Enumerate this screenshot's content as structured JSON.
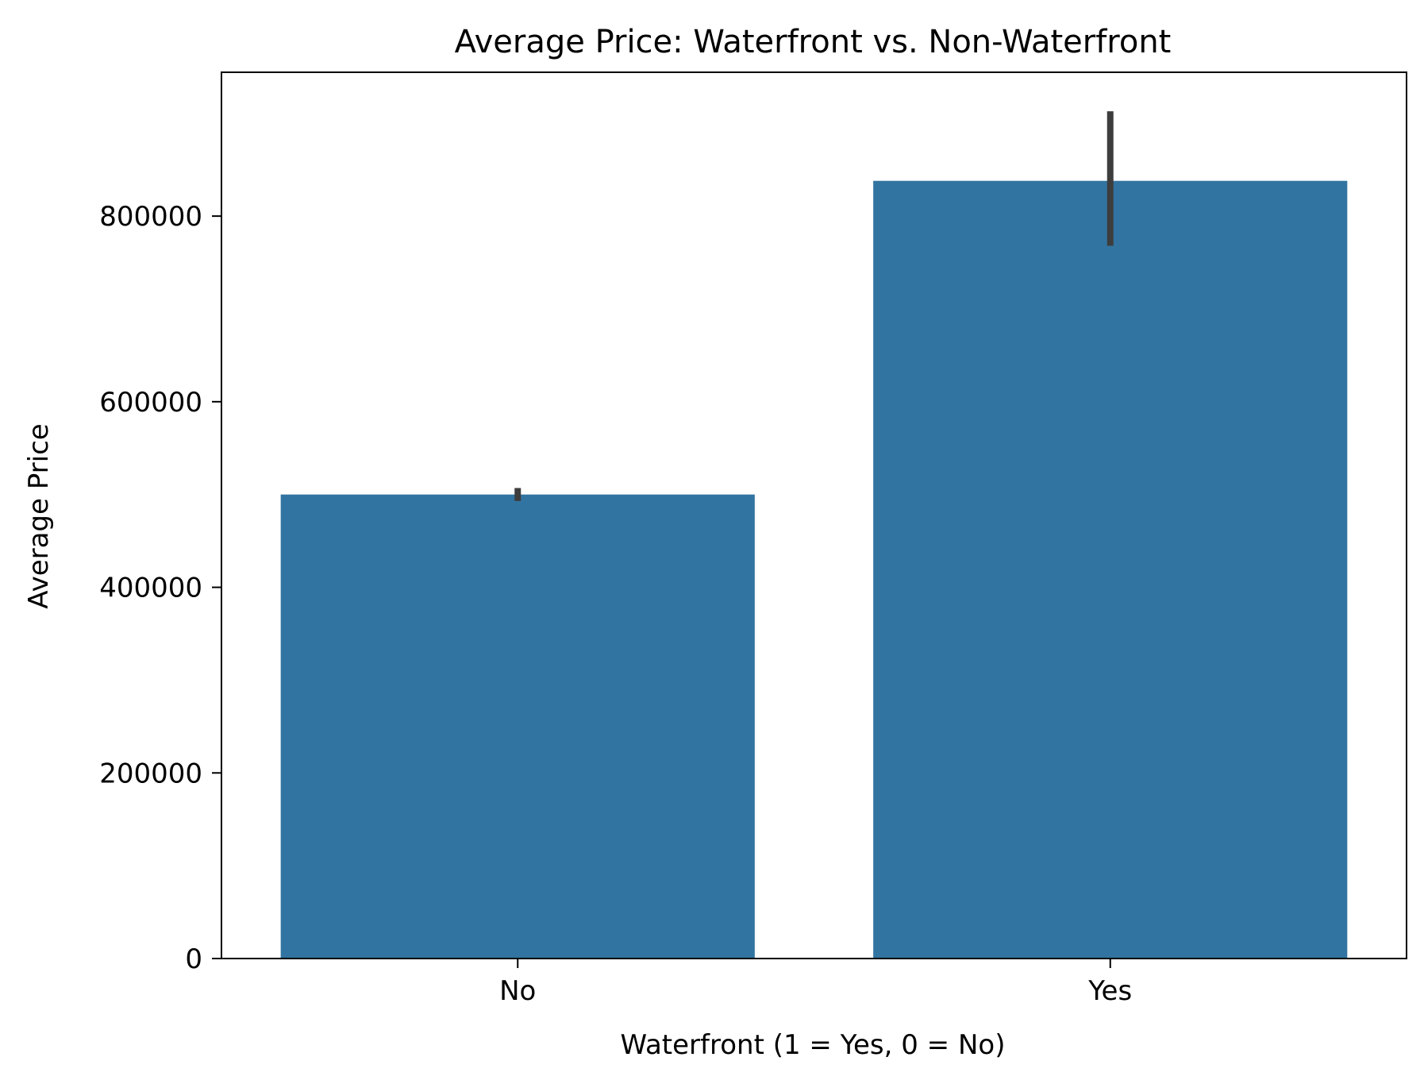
{
  "chart_data": {
    "type": "bar",
    "title": "Average Price: Waterfront vs. Non-Waterfront",
    "xlabel": "Waterfront (1 = Yes, 0 = No)",
    "ylabel": "Average Price",
    "categories": [
      "No",
      "Yes"
    ],
    "values": [
      500000,
      838000
    ],
    "error_bars": [
      {
        "low": 493000,
        "high": 507000
      },
      {
        "low": 768000,
        "high": 913000
      }
    ],
    "ylim": [
      0,
      955000
    ],
    "yticks": [
      0,
      200000,
      400000,
      600000,
      800000
    ],
    "ytick_labels": [
      "0",
      "200000",
      "400000",
      "600000",
      "800000"
    ],
    "grid": false,
    "colors": {
      "bar": "#3274a1",
      "error_bar": "#3d3d3d",
      "axes": "#000000"
    }
  }
}
